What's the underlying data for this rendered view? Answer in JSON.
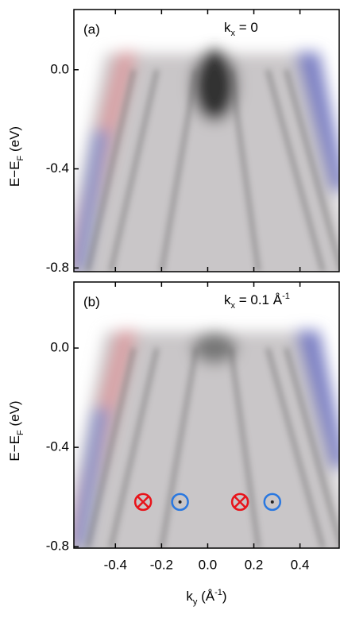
{
  "chart_data": [
    {
      "type": "heatmap",
      "panel_label": "(a)",
      "annotation": {
        "main": "k",
        "sub": "x",
        "rest": " = 0"
      },
      "ylabel": {
        "main": "E−E",
        "sub": "F",
        "rest": " (eV)"
      },
      "xlim": [
        -0.58,
        0.57
      ],
      "ylim": [
        -0.815,
        0.243
      ],
      "xticks": [
        -0.4,
        -0.2,
        0,
        0.2,
        0.4
      ],
      "yticks": [
        {
          "value": 0,
          "label": "0.0"
        },
        -0.4,
        -0.8
      ]
    },
    {
      "type": "heatmap",
      "panel_label": "(b)",
      "annotation": {
        "main": "k",
        "sub": "x",
        "rest": " = 0.1 Å",
        "sup": "-1"
      },
      "ylabel": {
        "main": "E−E",
        "sub": "F",
        "rest": " (eV)"
      },
      "xlabel": {
        "main": "k",
        "sub": "y",
        "rest": " (Å",
        "sup": "-1",
        "end": ")"
      },
      "xlim": [
        -0.58,
        0.57
      ],
      "ylim": [
        -0.806,
        0.266
      ],
      "xticks": [
        -0.4,
        -0.2,
        {
          "value": 0,
          "label": "0.0"
        },
        0.2,
        0.4
      ],
      "yticks": [
        {
          "value": 0,
          "label": "0.0"
        },
        -0.4,
        -0.8
      ],
      "markers": [
        {
          "kind": "into",
          "color": "#e8141b",
          "x": -0.28,
          "y": -0.62
        },
        {
          "kind": "out",
          "color": "#2a78e0",
          "x": -0.12,
          "y": -0.62
        },
        {
          "kind": "into",
          "color": "#e8141b",
          "x": 0.14,
          "y": -0.62
        },
        {
          "kind": "out",
          "color": "#2a78e0",
          "x": 0.28,
          "y": -0.62
        }
      ]
    }
  ]
}
